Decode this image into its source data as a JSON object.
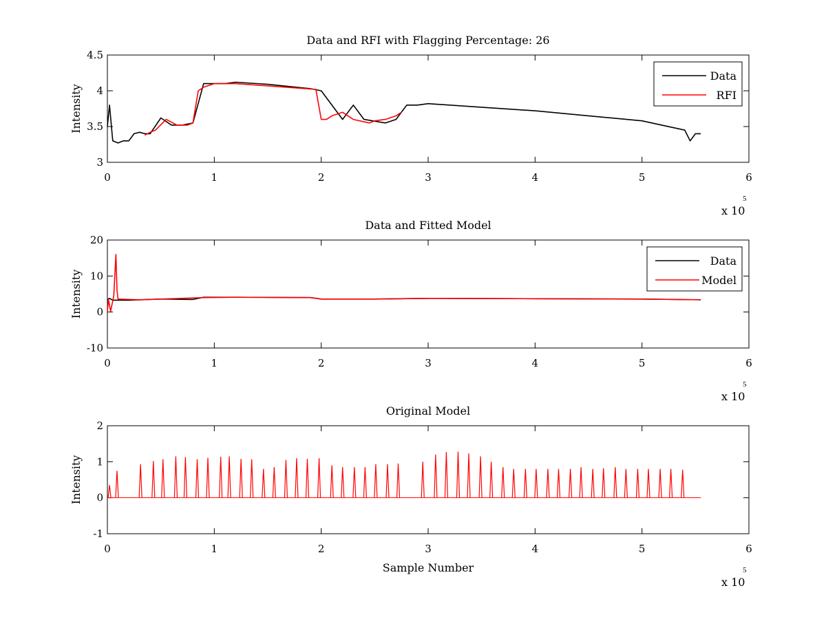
{
  "chart_data": [
    {
      "type": "line",
      "title": "Data and RFI with Flagging Percentage: 26",
      "xlabel": "",
      "ylabel": "Intensity",
      "xlim": [
        0,
        6
      ],
      "ylim": [
        3,
        4.5
      ],
      "xticks": [
        "0",
        "1",
        "2",
        "3",
        "4",
        "5",
        "6"
      ],
      "yticks": [
        "3",
        "3.5",
        "4",
        "4.5"
      ],
      "x_multiplier": "x 10",
      "x_multiplier_exp": "5",
      "legend": {
        "position": "top-right",
        "entries": [
          "Data",
          "RFI"
        ]
      },
      "series": [
        {
          "name": "Data",
          "color": "#000000",
          "x": [
            0.0,
            0.02,
            0.05,
            0.1,
            0.15,
            0.2,
            0.25,
            0.3,
            0.35,
            0.4,
            0.5,
            0.6,
            0.7,
            0.8,
            0.9,
            1.0,
            1.1,
            1.2,
            1.5,
            1.9,
            2.0,
            2.2,
            2.3,
            2.4,
            2.6,
            2.7,
            2.8,
            2.9,
            3.0,
            3.5,
            4.0,
            4.5,
            5.0,
            5.4,
            5.45,
            5.5,
            5.55
          ],
          "y": [
            3.5,
            3.8,
            3.3,
            3.27,
            3.3,
            3.3,
            3.4,
            3.42,
            3.4,
            3.4,
            3.62,
            3.52,
            3.52,
            3.55,
            4.1,
            4.1,
            4.1,
            4.12,
            4.09,
            4.03,
            4.0,
            3.6,
            3.8,
            3.6,
            3.55,
            3.6,
            3.8,
            3.8,
            3.82,
            3.77,
            3.72,
            3.65,
            3.58,
            3.45,
            3.3,
            3.4,
            3.4
          ]
        },
        {
          "name": "RFI",
          "color": "#ff0000",
          "x": [
            0.35,
            0.4,
            0.45,
            0.55,
            0.65,
            0.75,
            0.8,
            0.85,
            0.9,
            1.0,
            1.1,
            1.2,
            1.95,
            2.0,
            2.05,
            2.1,
            2.2,
            2.25,
            2.3,
            2.45,
            2.5,
            2.6,
            2.7,
            2.75
          ],
          "y": [
            3.38,
            3.42,
            3.45,
            3.6,
            3.52,
            3.52,
            3.55,
            4.0,
            4.05,
            4.1,
            4.1,
            4.1,
            4.02,
            3.6,
            3.6,
            3.65,
            3.7,
            3.65,
            3.6,
            3.55,
            3.58,
            3.6,
            3.65,
            3.7
          ]
        }
      ]
    },
    {
      "type": "line",
      "title": "Data and Fitted Model",
      "xlabel": "",
      "ylabel": "Intensity",
      "xlim": [
        0,
        6
      ],
      "ylim": [
        -10,
        20
      ],
      "xticks": [
        "0",
        "1",
        "2",
        "3",
        "4",
        "5",
        "6"
      ],
      "yticks": [
        "-10",
        "0",
        "10",
        "20"
      ],
      "x_multiplier": "x 10",
      "x_multiplier_exp": "5",
      "legend": {
        "position": "top-right",
        "entries": [
          "Data",
          "Model"
        ]
      },
      "series": [
        {
          "name": "Data",
          "color": "#000000",
          "x": [
            0.0,
            0.02,
            0.05,
            0.2,
            0.5,
            0.8,
            0.9,
            1.2,
            1.9,
            2.0,
            2.5,
            3.0,
            4.0,
            5.0,
            5.55
          ],
          "y": [
            3.5,
            3.8,
            3.3,
            3.3,
            3.6,
            3.5,
            4.1,
            4.1,
            4.0,
            3.6,
            3.6,
            3.8,
            3.7,
            3.6,
            3.4
          ]
        },
        {
          "name": "Model",
          "color": "#ff0000",
          "x": [
            0.0,
            0.01,
            0.03,
            0.06,
            0.08,
            0.09,
            0.1,
            0.3,
            0.9,
            1.2,
            1.9,
            2.0,
            2.5,
            3.0,
            4.0,
            5.0,
            5.55
          ],
          "y": [
            0.0,
            3.5,
            0.2,
            4.5,
            16.0,
            6.0,
            3.6,
            3.4,
            4.0,
            4.1,
            4.0,
            3.6,
            3.6,
            3.8,
            3.7,
            3.6,
            3.4
          ]
        }
      ]
    },
    {
      "type": "line",
      "title": "Original Model",
      "xlabel": "Sample Number",
      "ylabel": "Intensity",
      "xlim": [
        0,
        6
      ],
      "ylim": [
        -1,
        2
      ],
      "xticks": [
        "0",
        "1",
        "2",
        "3",
        "4",
        "5",
        "6"
      ],
      "yticks": [
        "-1",
        "0",
        "1",
        "2"
      ],
      "x_multiplier": "x 10",
      "x_multiplier_exp": "5",
      "series": [
        {
          "color": "#ff0000",
          "baseline": 0,
          "spike_x": [
            0.02,
            0.09,
            0.31,
            0.43,
            0.52,
            0.64,
            0.73,
            0.84,
            0.94,
            1.06,
            1.14,
            1.25,
            1.35,
            1.46,
            1.56,
            1.67,
            1.77,
            1.87,
            1.98,
            2.1,
            2.2,
            2.31,
            2.41,
            2.51,
            2.62,
            2.72,
            2.95,
            3.07,
            3.17,
            3.28,
            3.38,
            3.49,
            3.59,
            3.7,
            3.8,
            3.91,
            4.01,
            4.12,
            4.22,
            4.33,
            4.43,
            4.54,
            4.64,
            4.75,
            4.85,
            4.96,
            5.06,
            5.17,
            5.27,
            5.38
          ],
          "spike_y": [
            0.35,
            0.75,
            0.93,
            1.02,
            1.07,
            1.15,
            1.13,
            1.07,
            1.11,
            1.14,
            1.15,
            1.08,
            1.07,
            0.8,
            0.85,
            1.05,
            1.1,
            1.08,
            1.1,
            0.9,
            0.85,
            0.85,
            0.85,
            0.93,
            0.93,
            0.95,
            1.0,
            1.2,
            1.27,
            1.28,
            1.23,
            1.15,
            1.0,
            0.85,
            0.8,
            0.8,
            0.8,
            0.8,
            0.8,
            0.8,
            0.85,
            0.8,
            0.82,
            0.85,
            0.8,
            0.8,
            0.8,
            0.8,
            0.8,
            0.78
          ]
        }
      ]
    }
  ]
}
